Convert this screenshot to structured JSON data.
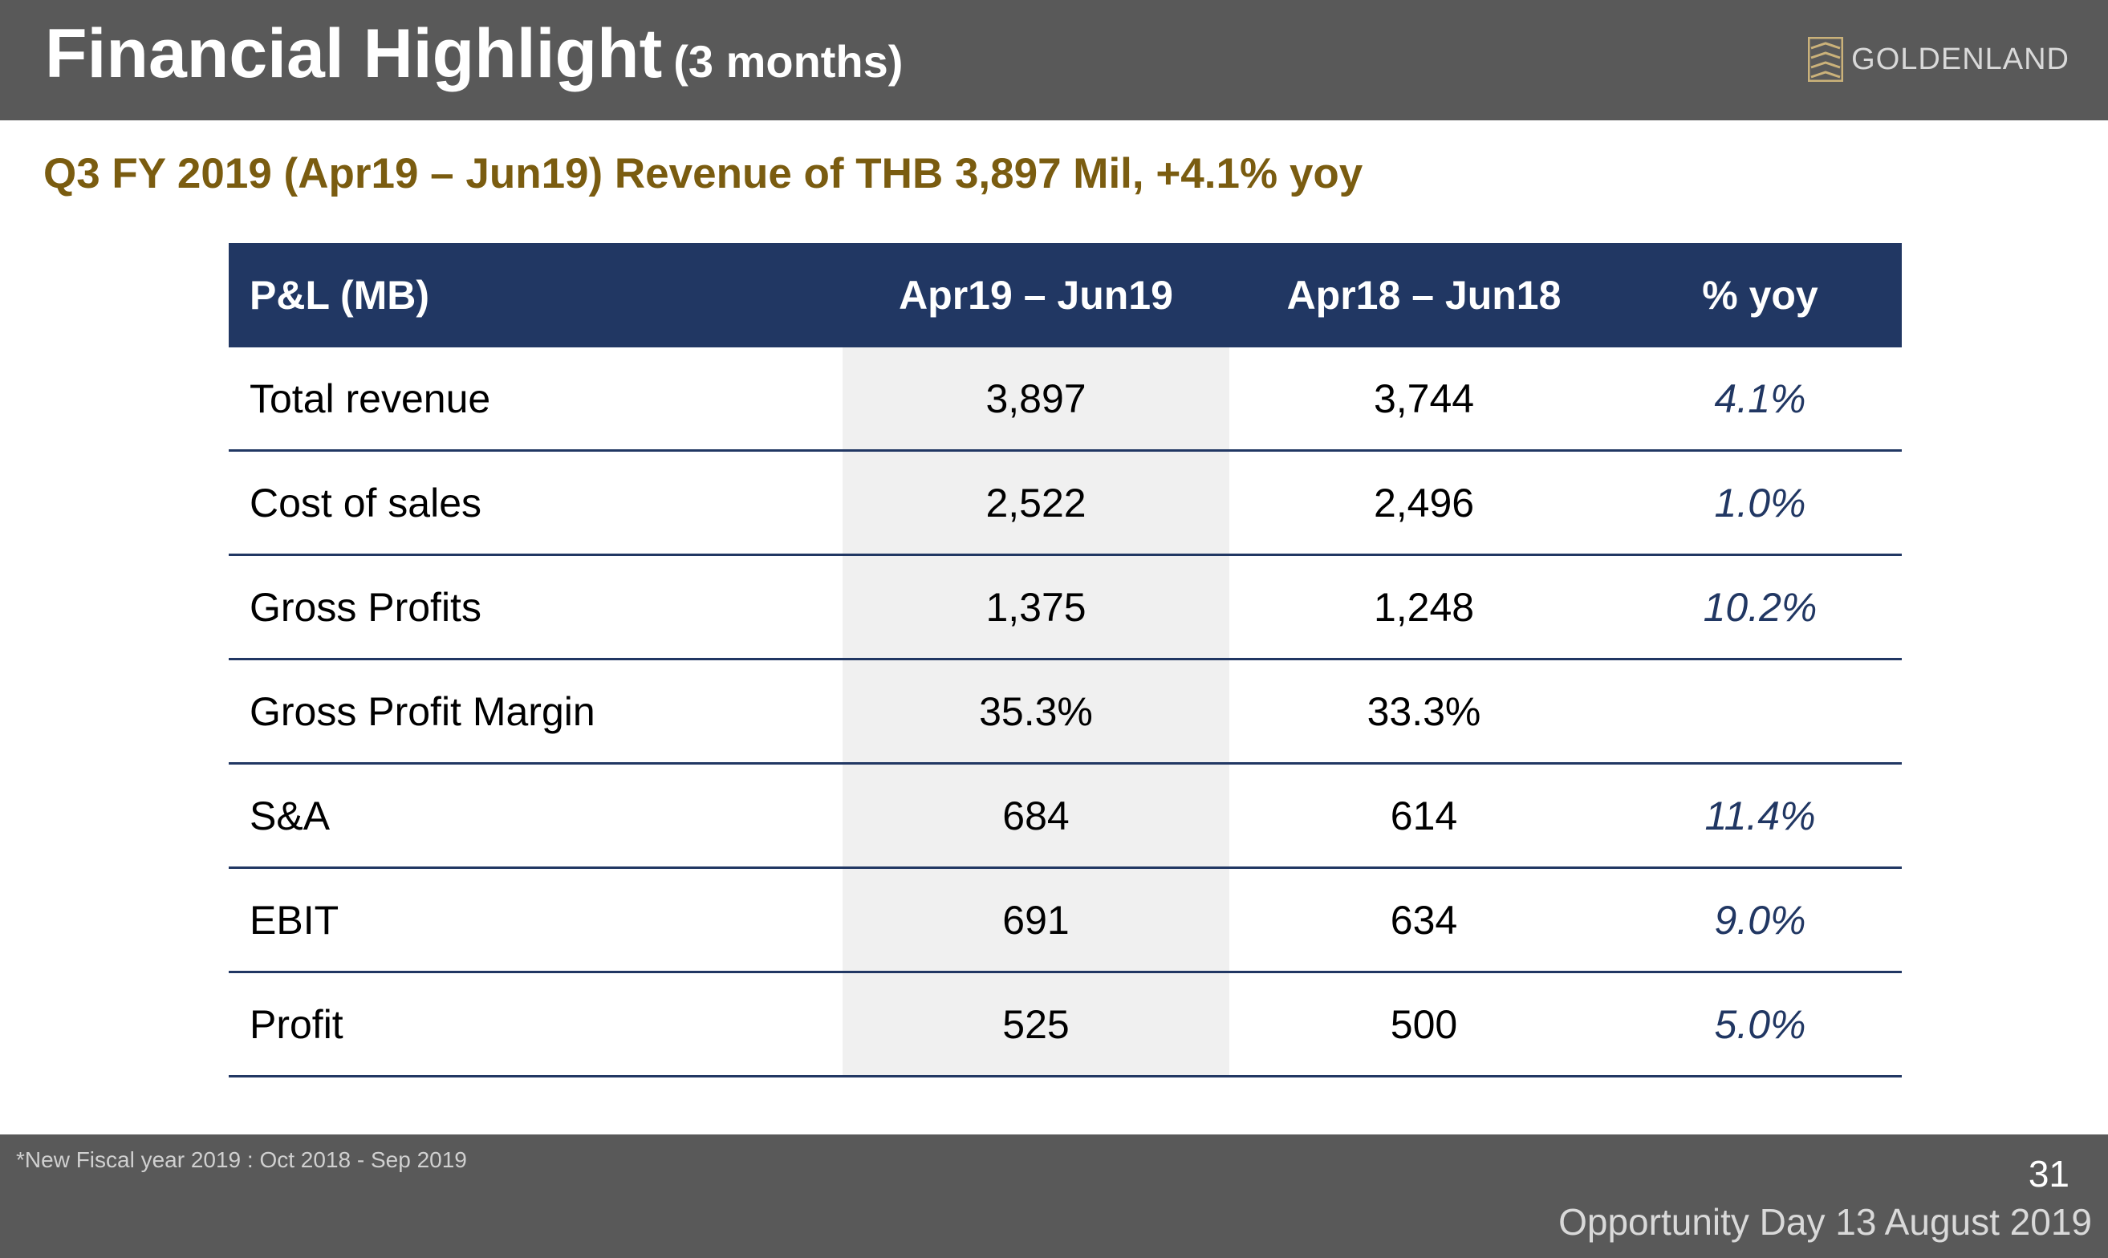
{
  "header": {
    "title": "Financial Highlight",
    "title_suffix": "(3 months)",
    "logo_text": "GOLDENLAND"
  },
  "subtitle": "Q3 FY 2019 (Apr19 – Jun19) Revenue of THB 3,897 Mil, +4.1% yoy",
  "table": {
    "headers": [
      "P&L (MB)",
      "Apr19 – Jun19",
      "Apr18 – Jun18",
      "% yoy"
    ],
    "rows": [
      {
        "label": "Total revenue",
        "current": "3,897",
        "prior": "3,744",
        "yoy": "4.1%"
      },
      {
        "label": "Cost of sales",
        "current": "2,522",
        "prior": "2,496",
        "yoy": "1.0%"
      },
      {
        "label": "Gross Profits",
        "current": "1,375",
        "prior": "1,248",
        "yoy": "10.2%"
      },
      {
        "label": "Gross Profit Margin",
        "current": "35.3%",
        "prior": "33.3%",
        "yoy": ""
      },
      {
        "label": "S&A",
        "current": "684",
        "prior": "614",
        "yoy": "11.4%"
      },
      {
        "label": "EBIT",
        "current": "691",
        "prior": "634",
        "yoy": "9.0%"
      },
      {
        "label": "Profit",
        "current": "525",
        "prior": "500",
        "yoy": "5.0%"
      }
    ]
  },
  "footer": {
    "note": "*New Fiscal year 2019 : Oct 2018 - Sep 2019",
    "page_number": "31",
    "event": "Opportunity Day 13 August 2019"
  },
  "colors": {
    "header_bg": "#595959",
    "table_header_bg": "#213763",
    "subtitle_gold": "#7a5c10",
    "highlight_col": "#f0f0f0"
  }
}
